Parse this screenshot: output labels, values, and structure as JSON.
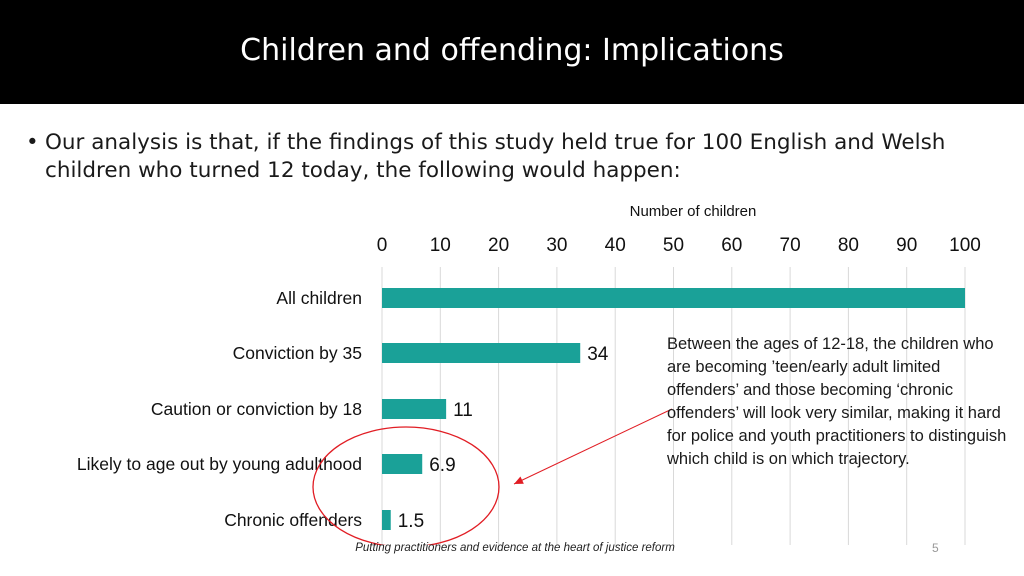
{
  "slide": {
    "title": "Children and offending: Implications",
    "bullet_marker": "•",
    "bullet_text": "Our analysis is that, if the findings of this study held true for 100 English and Welsh children who turned 12 today, the following would happen:",
    "annotation": "Between the ages of 12-18, the children who are becoming ’teen/early adult limited offenders’ and those becoming ‘chronic offenders’ will look very similar, making it hard for police and youth practitioners to distinguish which child is on which trajectory.",
    "footer": "Putting practitioners and evidence at the heart of justice reform",
    "slide_number": "5"
  },
  "chart_data": {
    "type": "bar",
    "orientation": "horizontal",
    "xlabel": "Number of children",
    "xlim": [
      0,
      100
    ],
    "ticks": [
      0,
      10,
      20,
      30,
      40,
      50,
      60,
      70,
      80,
      90,
      100
    ],
    "axis_position": "top",
    "grid": true,
    "categories": [
      "All children",
      "Conviction by 35",
      "Caution or conviction by 18",
      "Likely to age out by young adulthood",
      "Chronic offenders"
    ],
    "values": [
      100,
      34,
      11,
      6.9,
      1.5
    ],
    "data_labels": [
      "",
      "34",
      "11",
      "6.9",
      "1.5"
    ],
    "bar_color": "#1aa198",
    "grid_color": "#d9d9d9",
    "highlight_color": "#e11d24"
  }
}
